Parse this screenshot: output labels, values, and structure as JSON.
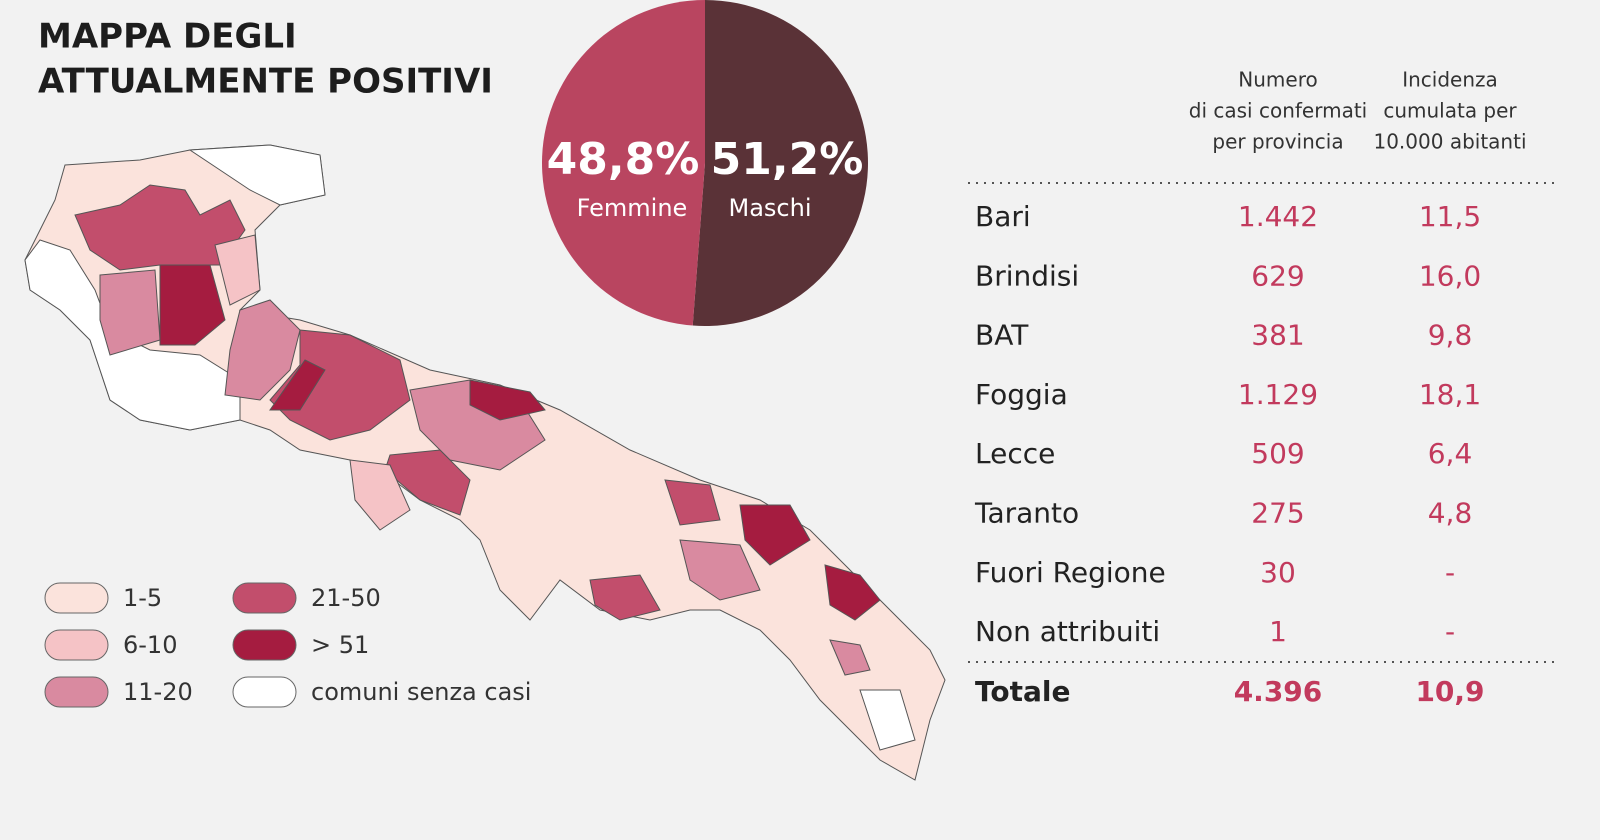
{
  "title": [
    "MAPPA DEGLI",
    "ATTUALMENTE POSITIVI"
  ],
  "chart_data": {
    "type": "pie",
    "categories": [
      "Femmine",
      "Maschi"
    ],
    "values": [
      48.8,
      51.2
    ],
    "value_labels": [
      "48,8%",
      "51,2%"
    ],
    "colors": [
      "#b94560",
      "#5a3237"
    ]
  },
  "legend": [
    {
      "label": "1-5",
      "color": "#fbe3dc"
    },
    {
      "label": "6-10",
      "color": "#f5c3c6"
    },
    {
      "label": "11-20",
      "color": "#d98aa0"
    },
    {
      "label": "21-50",
      "color": "#c24e6c"
    },
    {
      "label": "> 51",
      "color": "#a51c40"
    },
    {
      "label": "comuni senza casi",
      "color": "#ffffff"
    }
  ],
  "table": {
    "columns": [
      [
        "Numero",
        "di casi confermati",
        "per provincia"
      ],
      [
        "Incidenza",
        "cumulata per",
        "10.000 abitanti"
      ]
    ],
    "rows": [
      [
        "Bari",
        "1.442",
        "11,5"
      ],
      [
        "Brindisi",
        "629",
        "16,0"
      ],
      [
        "BAT",
        "381",
        "9,8"
      ],
      [
        "Foggia",
        "1.129",
        "18,1"
      ],
      [
        "Lecce",
        "509",
        "6,4"
      ],
      [
        "Taranto",
        "275",
        "4,8"
      ],
      [
        "Fuori Regione",
        "30",
        "-"
      ],
      [
        "Non attribuiti",
        "1",
        "-"
      ]
    ],
    "total": [
      "Totale",
      "4.396",
      "10,9"
    ]
  }
}
